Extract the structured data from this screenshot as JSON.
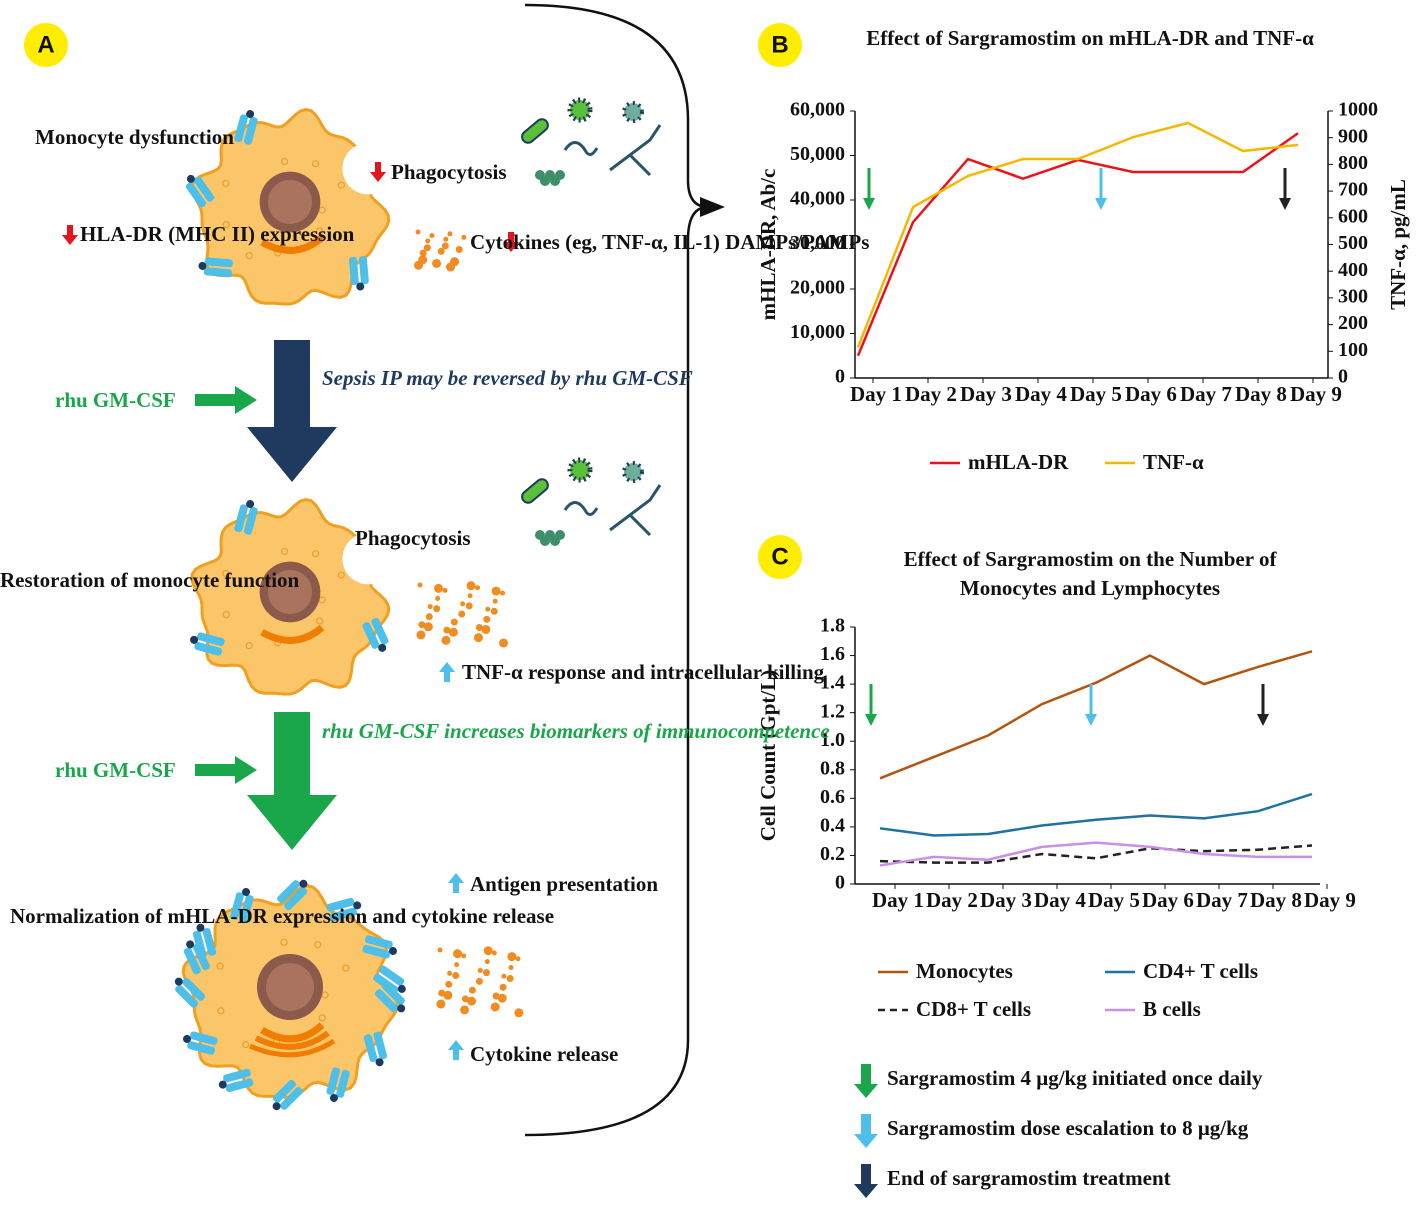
{
  "panel_labels": [
    "A",
    "B",
    "C"
  ],
  "panel_a": {
    "dysfunction": "Monocyte dysfunction",
    "hla_low": "HLA-DR (MHC II) expression",
    "phago_low": "Phagocytosis",
    "cytokines_low": "Cytokines (eg, TNF-α, IL-1) DAMPs/PAMPs",
    "gmcsf_1": "rhu GM-CSF",
    "reversal": "Sepsis IP may be reversed by rhu GM-CSF",
    "phago_restored": "Phagocytosis",
    "restoration": "Restoration of monocyte function",
    "tnf_response": "TNF-α response and intracellular killing",
    "gmcsf_2": "rhu GM-CSF",
    "increase": "rhu GM-CSF increases biomarkers of immunocompetence",
    "normalization": "Normalization of mHLA-DR expression and cytokine release",
    "antigen": "Antigen presentation",
    "cytokine_release": "Cytokine release"
  },
  "chart_data": [
    {
      "type": "line",
      "title": "Effect of Sargramostim on mHLA-DR and TNF-α",
      "categories": [
        "Day 1",
        "Day 2",
        "Day 3",
        "Day 4",
        "Day 5",
        "Day 6",
        "Day 7",
        "Day 8",
        "Day 9"
      ],
      "ylabel": "mHLA-DR, Ab/c",
      "y2label": "TNF-α, pg/mL",
      "ylim": [
        0,
        60000
      ],
      "yticks": [
        0,
        {
          "value": 10000,
          "label": "10,000"
        },
        {
          "value": 20000,
          "label": "20,000"
        },
        {
          "value": 30000,
          "label": "30,000"
        },
        {
          "value": 40000,
          "label": "40,000"
        },
        {
          "value": 50000,
          "label": "50,000"
        },
        {
          "value": 60000,
          "label": "60,000"
        }
      ],
      "y2lim": [
        0,
        1000
      ],
      "y2ticks": [
        0,
        100,
        200,
        300,
        400,
        500,
        600,
        700,
        800,
        900,
        1000
      ],
      "series": [
        {
          "name": "mHLA-DR",
          "color": "#e8141c",
          "values": [
            5000,
            35000,
            49200,
            44800,
            49000,
            46300,
            46300,
            46300,
            55000
          ]
        },
        {
          "name": "TNF-α",
          "color": "#f5b800",
          "axis": "y2",
          "values": [
            115,
            640,
            757,
            820,
            820,
            902,
            955,
            850,
            873
          ]
        }
      ]
    },
    {
      "type": "line",
      "title": "Effect of Sargramostim on the Number of Monocytes and Lymphocytes",
      "categories": [
        "Day 1",
        "Day 2",
        "Day 3",
        "Day 4",
        "Day 5",
        "Day 6",
        "Day 7",
        "Day 8",
        "Day 9"
      ],
      "ylabel": "Cell Count (Gpt/L)",
      "ylim": [
        0,
        1.8
      ],
      "yticks": [
        0,
        0.2,
        0.4,
        0.6,
        0.8,
        {
          "value": 1,
          "label": "1.0"
        },
        1.2,
        1.4,
        1.6,
        1.8
      ],
      "series": [
        {
          "name": "Monocytes",
          "color": "#b5540f",
          "values": [
            0.74,
            0.89,
            1.04,
            1.26,
            1.41,
            1.6,
            1.4,
            1.52,
            1.63
          ]
        },
        {
          "name": "CD4+ T cells",
          "color": "#1e73a0",
          "values": [
            0.39,
            0.34,
            0.35,
            0.41,
            0.45,
            0.48,
            0.46,
            0.51,
            0.63
          ]
        },
        {
          "name": "CD8+ T cells",
          "color": "#222222",
          "dashed": true,
          "values": [
            0.16,
            0.15,
            0.15,
            0.21,
            0.18,
            0.25,
            0.23,
            0.24,
            0.27
          ]
        },
        {
          "name": "B cells",
          "color": "#c890e6",
          "values": [
            0.13,
            0.19,
            0.17,
            0.26,
            0.29,
            0.26,
            0.21,
            0.19,
            0.19
          ]
        }
      ]
    }
  ],
  "arrow_legend": [
    {
      "text": "Sargramostim 4 μg/kg initiated once daily",
      "color": "#1aa64a"
    },
    {
      "text": "Sargramostim dose escalation to 8 μg/kg",
      "color": "#4dbfe8"
    },
    {
      "text": "End of sargramostim treatment",
      "color": "#1f3a5f"
    }
  ]
}
